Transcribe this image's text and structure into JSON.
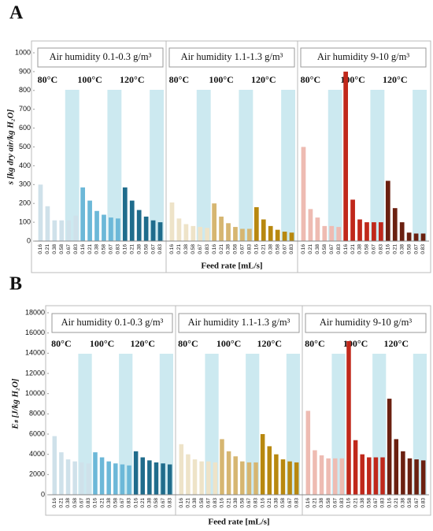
{
  "chart_data": [
    {
      "type": "bar",
      "panel": "A",
      "y_label": "s [kg dry air/kg H₂O]",
      "x_label": "Feed rate [mL/s]",
      "ylim": [
        0,
        1000
      ],
      "yticks": [
        0,
        100,
        200,
        300,
        400,
        500,
        600,
        700,
        800,
        900,
        1000
      ],
      "categories": [
        "0.16",
        "0.21",
        "0.38",
        "0.58",
        "0.67",
        "0.83"
      ],
      "facets": [
        {
          "title": "Air humidity 0.1-0.3 g/m³",
          "series": [
            {
              "name": "80°C",
              "color": "#cfe1ea",
              "values": [
                300,
                185,
                110,
                110,
                110,
                135
              ]
            },
            {
              "name": "100°C",
              "color": "#6cb8d8",
              "values": [
                285,
                215,
                160,
                140,
                125,
                120
              ]
            },
            {
              "name": "120°C",
              "color": "#1f6c8c",
              "values": [
                285,
                215,
                165,
                130,
                110,
                100
              ]
            }
          ]
        },
        {
          "title": "Air humidity 1.1-1.3 g/m³",
          "series": [
            {
              "name": "80°C",
              "color": "#eee3c8",
              "values": [
                205,
                120,
                90,
                80,
                75,
                70
              ]
            },
            {
              "name": "100°C",
              "color": "#d6b671",
              "values": [
                200,
                130,
                95,
                75,
                65,
                65
              ]
            },
            {
              "name": "120°C",
              "color": "#b8880f",
              "values": [
                180,
                115,
                80,
                60,
                50,
                45
              ]
            }
          ]
        },
        {
          "title": "Air humidity 9-10 g/m³",
          "series": [
            {
              "name": "80°C",
              "color": "#eebbb2",
              "values": [
                500,
                170,
                125,
                80,
                80,
                75
              ]
            },
            {
              "name": "100°C",
              "color": "#c0281b",
              "values": [
                900,
                220,
                115,
                100,
                100,
                100
              ]
            },
            {
              "name": "120°C",
              "color": "#6b2010",
              "values": [
                320,
                175,
                100,
                45,
                40,
                40
              ]
            }
          ]
        }
      ]
    },
    {
      "type": "bar",
      "panel": "B",
      "y_label": "Eₛ [J/kg H₂O]",
      "x_label": "Feed rate [mL/s]",
      "ylim": [
        0,
        18000
      ],
      "yticks": [
        0,
        2000,
        4000,
        6000,
        8000,
        10000,
        12000,
        14000,
        16000,
        18000
      ],
      "categories": [
        "0.16",
        "0.21",
        "0.38",
        "0.58",
        "0.67",
        "0.83"
      ],
      "facets": [
        {
          "title": "Air humidity 0.1-0.3 g/m³",
          "series": [
            {
              "name": "80°C",
              "color": "#cfe1ea",
              "values": [
                5800,
                4200,
                3500,
                3300,
                3200,
                3100
              ]
            },
            {
              "name": "100°C",
              "color": "#6cb8d8",
              "values": [
                4200,
                3700,
                3300,
                3100,
                3000,
                2900
              ]
            },
            {
              "name": "120°C",
              "color": "#1f6c8c",
              "values": [
                4300,
                3700,
                3400,
                3200,
                3100,
                3000
              ]
            }
          ]
        },
        {
          "title": "Air humidity 1.1-1.3 g/m³",
          "series": [
            {
              "name": "80°C",
              "color": "#eee3c8",
              "values": [
                5000,
                4000,
                3500,
                3300,
                3300,
                3200
              ]
            },
            {
              "name": "100°C",
              "color": "#d6b671",
              "values": [
                5500,
                4300,
                3800,
                3300,
                3200,
                3200
              ]
            },
            {
              "name": "120°C",
              "color": "#b8880f",
              "values": [
                6000,
                4800,
                4000,
                3500,
                3300,
                3200
              ]
            }
          ]
        },
        {
          "title": "Air humidity 9-10 g/m³",
          "series": [
            {
              "name": "80°C",
              "color": "#eebbb2",
              "values": [
                8300,
                4400,
                3900,
                3600,
                3600,
                3600
              ]
            },
            {
              "name": "100°C",
              "color": "#c0281b",
              "values": [
                15200,
                5400,
                4000,
                3700,
                3700,
                3700
              ]
            },
            {
              "name": "120°C",
              "color": "#6b2010",
              "values": [
                9500,
                5500,
                4300,
                3600,
                3500,
                3400
              ]
            }
          ]
        }
      ]
    }
  ]
}
